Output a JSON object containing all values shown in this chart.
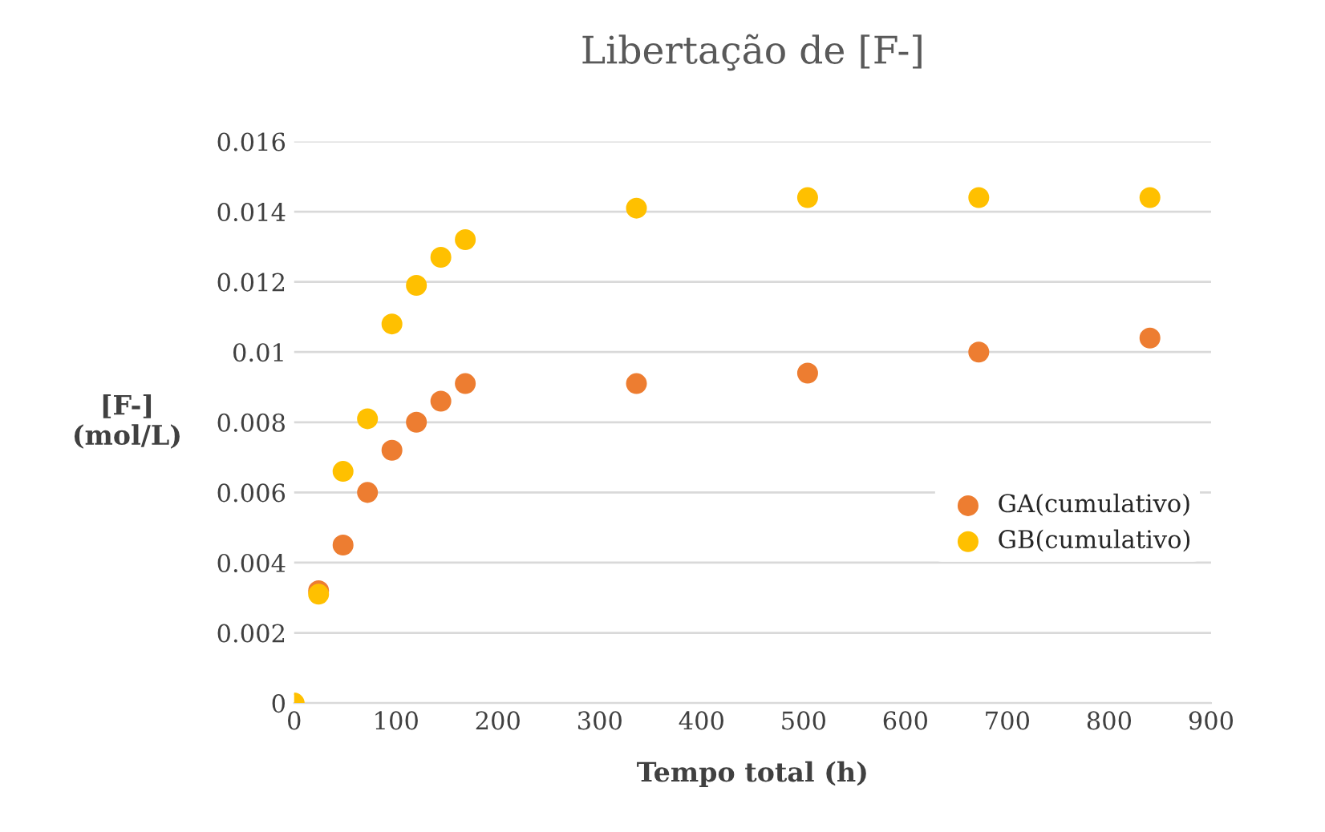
{
  "chart_data": {
    "type": "scatter",
    "title": "Libertação de [F-]",
    "xlabel": "Tempo total (h)",
    "ylabel": "[F-]\n(mol/L)",
    "series": [
      {
        "name": "GA(cumulativo)",
        "color": "#ed7d31",
        "x": [
          24,
          48,
          72,
          96,
          120,
          144,
          168,
          336,
          504,
          672,
          840
        ],
        "values": [
          0.0032,
          0.0045,
          0.006,
          0.0072,
          0.008,
          0.0086,
          0.0091,
          0.0091,
          0.0094,
          0.01,
          0.0104
        ]
      },
      {
        "name": "GB(cumulativo)",
        "color": "#ffc000",
        "x": [
          0,
          24,
          48,
          72,
          96,
          120,
          144,
          168,
          336,
          504,
          672,
          840
        ],
        "values": [
          0,
          0.0031,
          0.0066,
          0.0081,
          0.0108,
          0.0119,
          0.0127,
          0.0132,
          0.0141,
          0.0144,
          0.0144,
          0.0144
        ]
      }
    ],
    "xlim": [
      0,
      900
    ],
    "xticks": [
      0,
      100,
      200,
      300,
      400,
      500,
      600,
      700,
      800,
      900
    ],
    "ylim": [
      0,
      0.016
    ],
    "yticks": [
      0,
      0.002,
      0.004,
      0.006,
      0.008,
      0.01,
      0.012,
      0.014,
      0.016
    ],
    "grid": "y",
    "legend": "right",
    "marker": "circle"
  }
}
